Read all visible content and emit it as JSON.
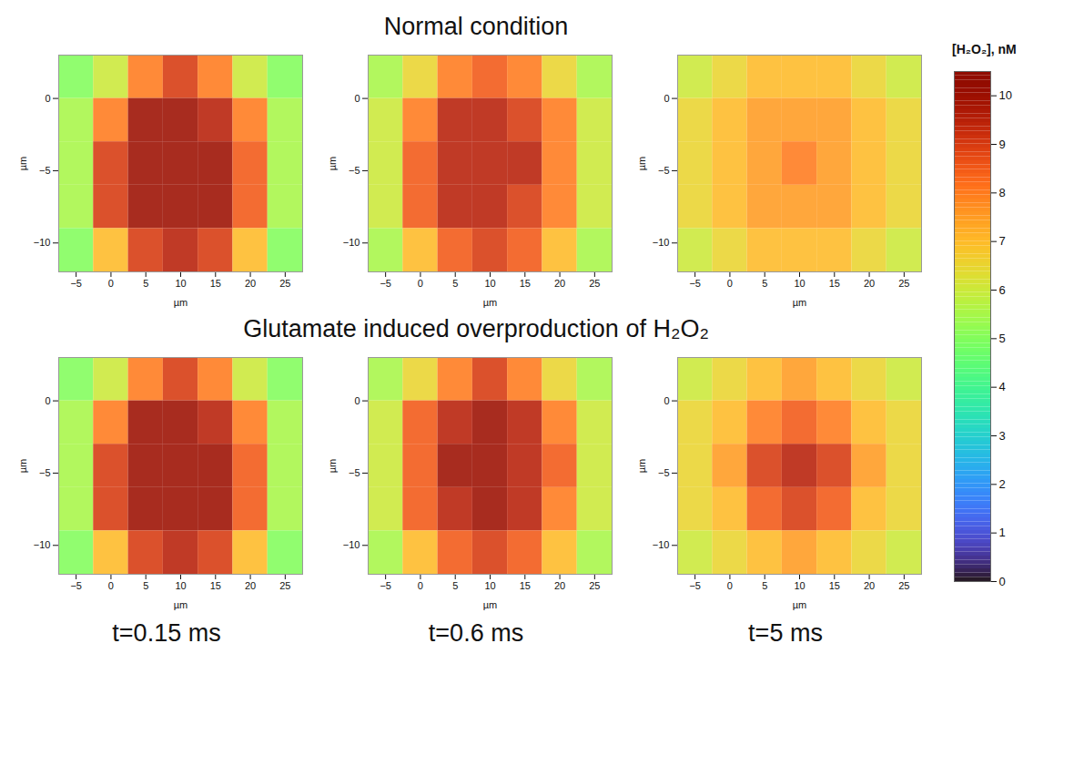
{
  "chart_data": {
    "type": "heatmap",
    "xlabel": "µm",
    "ylabel": "µm",
    "xlim": [
      -7.5,
      27.5
    ],
    "ylim": [
      -12,
      3
    ],
    "xticks": [
      -5,
      0,
      5,
      10,
      15,
      20,
      25
    ],
    "yticks": [
      -10,
      -5,
      0
    ],
    "x_edges": [
      -7.5,
      -2.5,
      2.5,
      7.5,
      12.5,
      17.5,
      22.5,
      27.5
    ],
    "y_edges": [
      3,
      0,
      -3,
      -6,
      -9,
      -12
    ],
    "column_labels": [
      "t=0.15 ms",
      "t=0.6 ms",
      "t=5 ms"
    ],
    "colorbar": {
      "label": "[H₂O₂], nM",
      "range": [
        0,
        10.5
      ],
      "ticks": [
        0,
        1,
        2,
        3,
        4,
        5,
        6,
        7,
        8,
        9,
        10
      ]
    },
    "rows": [
      {
        "title": "Normal condition",
        "panels": [
          [
            [
              5,
              6,
              8,
              9,
              8,
              6,
              5
            ],
            [
              5.5,
              8,
              10,
              10,
              9.5,
              8,
              5.5
            ],
            [
              5.5,
              9,
              10,
              10,
              10,
              8.5,
              5.5
            ],
            [
              5.5,
              9,
              10,
              10,
              10,
              8.5,
              5.5
            ],
            [
              5,
              7,
              9,
              9.5,
              9,
              7,
              5
            ]
          ],
          [
            [
              5.5,
              6.5,
              8,
              8.5,
              8,
              6.5,
              5.5
            ],
            [
              6,
              8,
              9.5,
              9.5,
              9,
              8,
              6
            ],
            [
              6,
              8.5,
              9.5,
              9.5,
              9.5,
              8,
              6
            ],
            [
              6,
              8.5,
              9.5,
              9.5,
              9,
              8,
              6
            ],
            [
              5.5,
              7,
              8.5,
              9,
              8.5,
              7,
              5.5
            ]
          ],
          [
            [
              6,
              6.5,
              7,
              7,
              7,
              6.5,
              6
            ],
            [
              6.5,
              7,
              7.5,
              7.5,
              7.5,
              7,
              6.5
            ],
            [
              6.5,
              7,
              7.5,
              8,
              7.5,
              7,
              6.5
            ],
            [
              6.5,
              7,
              7.5,
              7.5,
              7.5,
              7,
              6.5
            ],
            [
              6,
              6.5,
              7,
              7,
              7,
              6.5,
              6
            ]
          ]
        ]
      },
      {
        "title": "Glutamate induced overproduction of H₂O₂",
        "panels": [
          [
            [
              5,
              6,
              8,
              9,
              8,
              6,
              5
            ],
            [
              5.5,
              8,
              10,
              10,
              9.5,
              8,
              5.5
            ],
            [
              5.5,
              9,
              10,
              10,
              10,
              8.5,
              5.5
            ],
            [
              5.5,
              9,
              10,
              10,
              10,
              8.5,
              5.5
            ],
            [
              5,
              7,
              9,
              9.5,
              9,
              7,
              5
            ]
          ],
          [
            [
              5.5,
              6.5,
              8,
              9,
              8,
              6.5,
              5.5
            ],
            [
              6,
              8.5,
              9.5,
              10,
              9.5,
              8,
              6
            ],
            [
              6,
              8.5,
              10,
              10,
              9.5,
              8.5,
              6
            ],
            [
              6,
              8.5,
              9.5,
              10,
              9.5,
              8,
              6
            ],
            [
              5.5,
              7,
              8.5,
              9,
              8.5,
              7,
              5.5
            ]
          ],
          [
            [
              6,
              6.5,
              7,
              7.5,
              7,
              6.5,
              6
            ],
            [
              6.5,
              7,
              8,
              8.5,
              8,
              7,
              6.5
            ],
            [
              6.5,
              7.5,
              9,
              9.5,
              9,
              7.5,
              6.5
            ],
            [
              6.5,
              7,
              8.5,
              9,
              8.5,
              7,
              6.5
            ],
            [
              6,
              6.5,
              7,
              7.5,
              7,
              6.5,
              6
            ]
          ]
        ]
      }
    ]
  }
}
